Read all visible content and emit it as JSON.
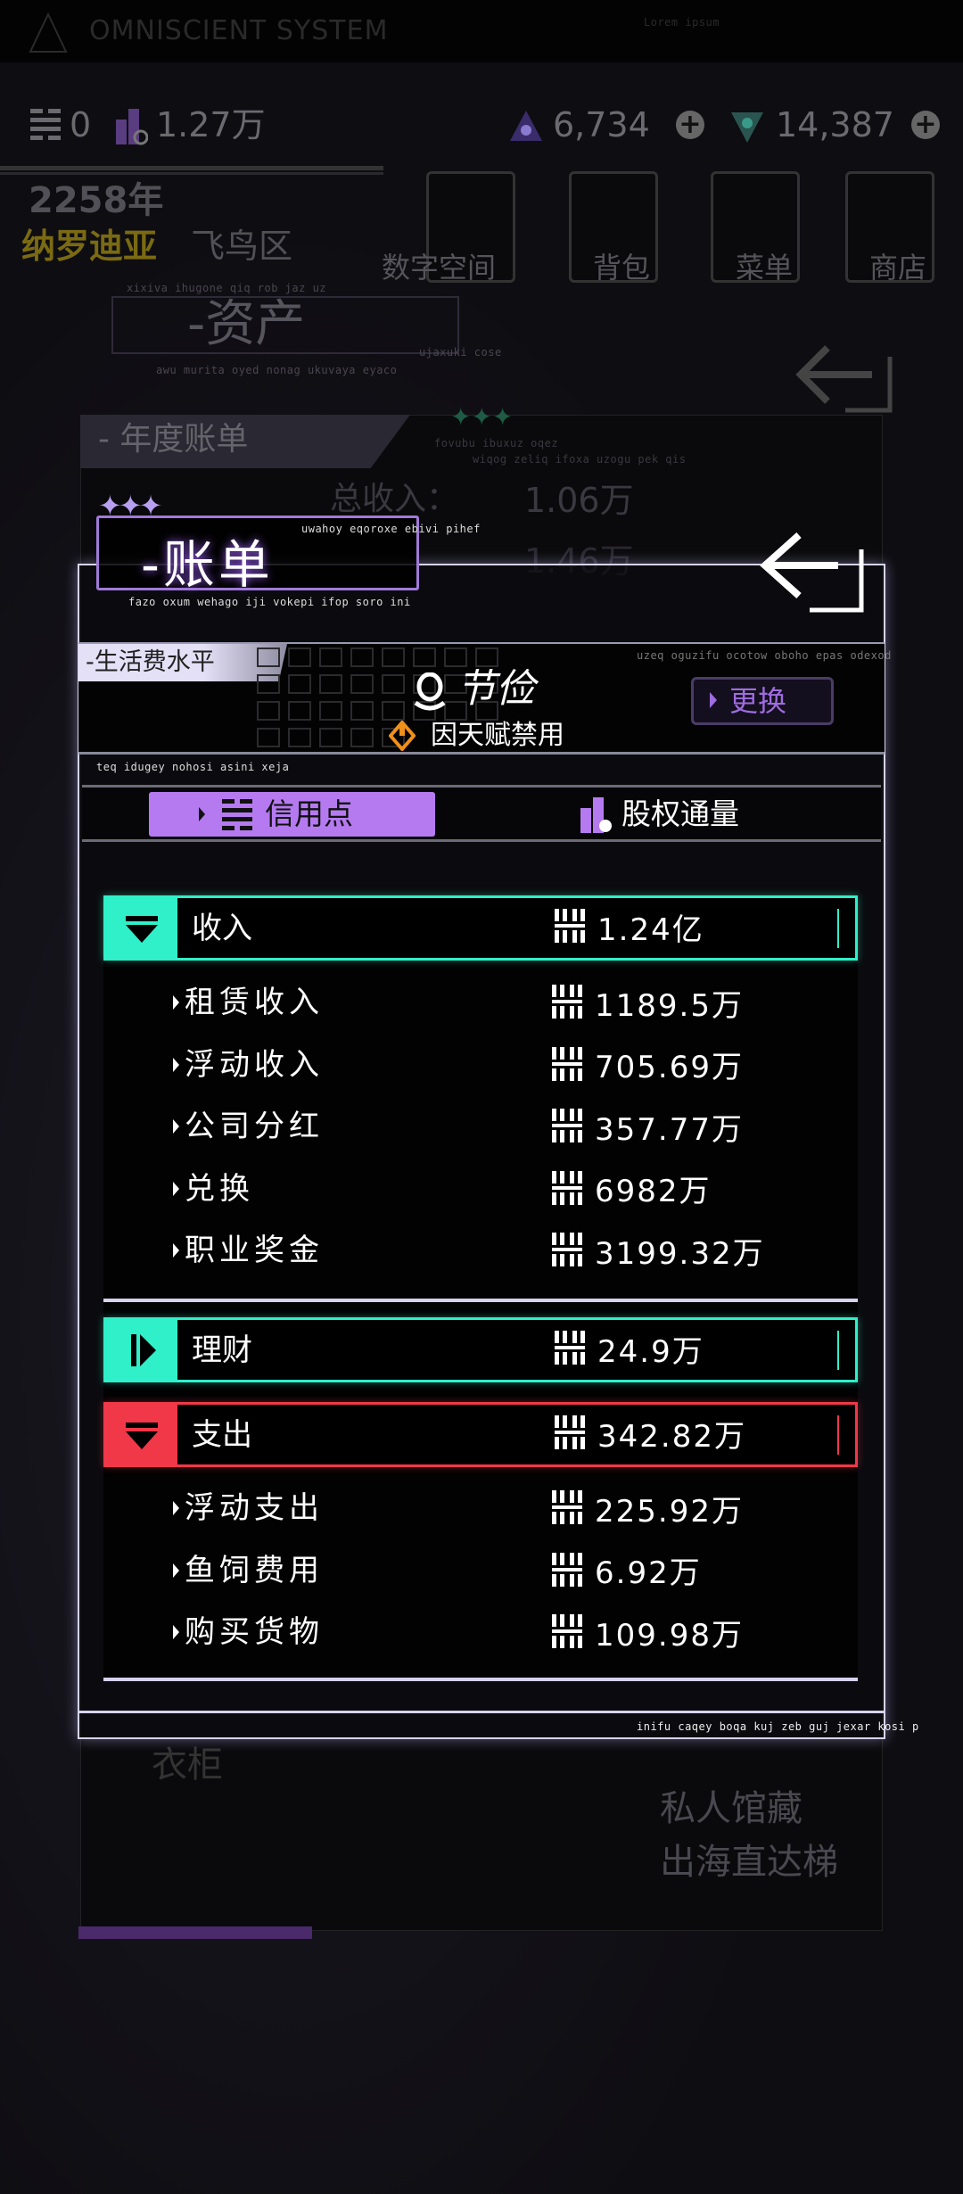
{
  "topbar": {
    "title": "OMNISCIENT SYSTEM",
    "status": "Lorem ipsum"
  },
  "currency": {
    "credit": "0",
    "equity": "1.27万",
    "gem_a": "6,734",
    "gem_b": "14,387"
  },
  "location": {
    "year": "2258年",
    "city": "纳罗迪亚",
    "district": "飞鸟区"
  },
  "nav": [
    {
      "label": "数字空间"
    },
    {
      "label": "背包"
    },
    {
      "label": "菜单"
    },
    {
      "label": "商店"
    }
  ],
  "assets": {
    "title": "-资产",
    "caption_top": "xixiva ihugone qiq rob jaz uz",
    "caption_right": "ujaxuki cose",
    "caption_bottom": "awu murita oyed nonag ukuvaya eyaco"
  },
  "annual": {
    "title": "- 年度账单",
    "caption1": "fovubu ibuxuz oqez",
    "caption2": "wiqog zeliq ifoxa uzogu pek qis",
    "total_income_label": "总收入：",
    "total_income": "1.06万",
    "second_value": "1.46万",
    "background_label": "衣柜",
    "bg_text1": "私人馆藏",
    "bg_text2": "出海直达梯"
  },
  "modal": {
    "title": "-账单",
    "caption_top": "uwahoy eqoroxe ebivi pihef",
    "caption_bottom": "fazo oxum wehago iji vokepi ifop soro ini",
    "living": {
      "tag": "-生活费水平",
      "level": "节俭",
      "note": "因天赋禁用",
      "swap": "更换",
      "caption": "uzeq oguzifu ocotow oboho epas odexod"
    },
    "caption_mid": "teq idugey nohosi asini xeja",
    "tabs": [
      {
        "label": "信用点",
        "active": true
      },
      {
        "label": "股权通量",
        "active": false
      }
    ],
    "income": {
      "label": "收入",
      "total": "1.24亿",
      "color": "#2ff0c8",
      "items": [
        {
          "label": "租赁收入",
          "value": "1189.5万"
        },
        {
          "label": "浮动收入",
          "value": "705.69万"
        },
        {
          "label": "公司分红",
          "value": "357.77万"
        },
        {
          "label": "兑换",
          "value": "6982万"
        },
        {
          "label": "职业奖金",
          "value": "3199.32万"
        }
      ]
    },
    "finance": {
      "label": "理财",
      "total": "24.9万",
      "color": "#2ff0c8"
    },
    "expense": {
      "label": "支出",
      "total": "342.82万",
      "color": "#f03848",
      "items": [
        {
          "label": "浮动支出",
          "value": "225.92万"
        },
        {
          "label": "鱼饲费用",
          "value": "6.92万"
        },
        {
          "label": "购买货物",
          "value": "109.98万"
        }
      ]
    },
    "footer_caption": "inifu caqey boqa kuj zeb guj jexar kosi p"
  },
  "colors": {
    "accent_purple": "#b57af0",
    "teal": "#2ff0c8",
    "red": "#f03848",
    "warning": "#f0901c"
  }
}
